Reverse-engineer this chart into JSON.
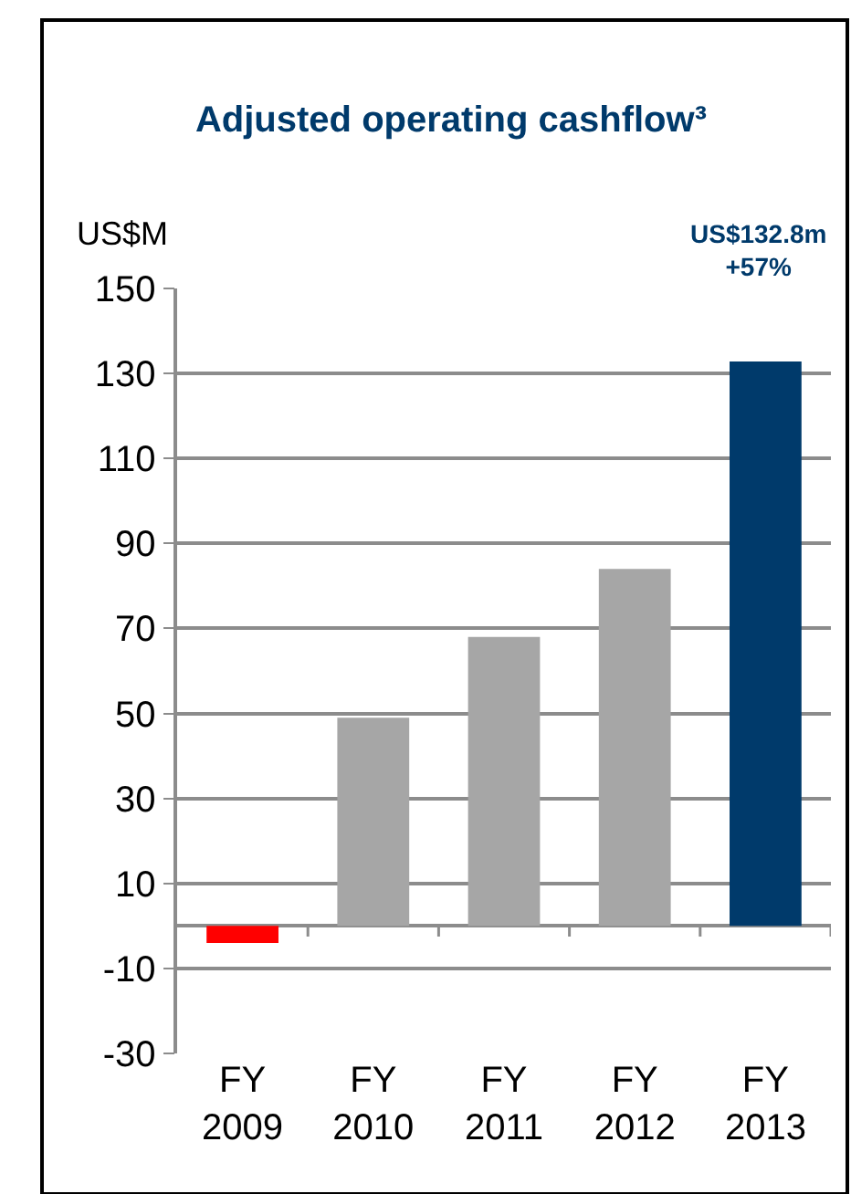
{
  "chart_data": {
    "type": "bar",
    "title": "Adjusted operating cashflow³",
    "ylabel": "US$M",
    "categories": [
      "FY 2009",
      "FY 2010",
      "FY 2011",
      "FY 2012",
      "FY 2013"
    ],
    "values": [
      -4,
      49,
      68,
      84,
      132.8
    ],
    "colors": [
      "#ff0000",
      "#a6a6a6",
      "#a6a6a6",
      "#a6a6a6",
      "#003a6b"
    ],
    "ylim": [
      -30,
      150
    ],
    "yticks": [
      -30,
      -10,
      10,
      30,
      50,
      70,
      90,
      110,
      130,
      150
    ],
    "grid": "y",
    "annotations": [
      "US$132.8m\n+57%"
    ]
  }
}
